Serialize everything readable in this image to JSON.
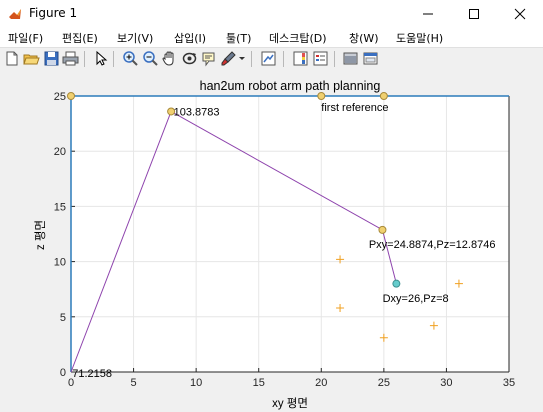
{
  "window": {
    "title": "Figure 1",
    "icon": "matlab-icon",
    "controls": [
      "minimize-icon",
      "maximize-icon",
      "close-icon"
    ]
  },
  "menu": [
    {
      "label": "파일(F)"
    },
    {
      "label": "편집(E)"
    },
    {
      "label": "보기(V)"
    },
    {
      "label": "삽입(I)"
    },
    {
      "label": "툴(T)"
    },
    {
      "label": "데스크탑(D)"
    },
    {
      "label": "창(W)"
    },
    {
      "label": "도움말(H)"
    }
  ],
  "toolbar": [
    "new-figure-icon",
    "open-file-icon",
    "save-icon",
    "print-icon",
    "select-arrow-icon",
    "zoom-in-icon",
    "zoom-out-icon",
    "pan-hand-icon",
    "rotate-3d-icon",
    "data-cursor-icon",
    "brush-icon",
    "link-plot-icon",
    "colorbar-icon",
    "legend-icon",
    "hide-plot-tools-icon",
    "show-plot-tools-icon"
  ],
  "colors": {
    "path": "#8e44ad",
    "marker_yellow": "#f0d070",
    "marker_cyan": "#66cccc",
    "targets": "#f0a020",
    "axes": "#262626",
    "left_axis": "#2b7bba",
    "grid": "#e6e6e6"
  },
  "chart_data": {
    "type": "line",
    "title": "han2um robot arm path planning",
    "xlabel": "xy 평면",
    "ylabel": "z 평면",
    "xlim": [
      0,
      35
    ],
    "ylim": [
      0,
      25
    ],
    "xticks": [
      "0",
      "5",
      "10",
      "15",
      "20",
      "25",
      "30",
      "35"
    ],
    "yticks": [
      "0",
      "5",
      "10",
      "15",
      "20",
      "25"
    ],
    "grid": true,
    "arm_path": {
      "x": [
        0,
        8,
        24.8874,
        26
      ],
      "y": [
        0,
        23.6,
        12.8746,
        8
      ]
    },
    "joint_markers": [
      {
        "x": 0,
        "y": 25,
        "color": "yellow"
      },
      {
        "x": 20,
        "y": 25,
        "color": "yellow"
      },
      {
        "x": 25,
        "y": 25,
        "color": "yellow"
      },
      {
        "x": 8,
        "y": 23.6,
        "color": "yellow"
      },
      {
        "x": 24.8874,
        "y": 12.8746,
        "color": "yellow"
      },
      {
        "x": 26,
        "y": 8,
        "color": "cyan"
      }
    ],
    "targets": [
      {
        "x": 21.5,
        "y": 10.2
      },
      {
        "x": 21.5,
        "y": 5.8
      },
      {
        "x": 25,
        "y": 3.1
      },
      {
        "x": 29,
        "y": 4.2
      },
      {
        "x": 31,
        "y": 8.0
      }
    ],
    "annotations": [
      {
        "text": "103.8783",
        "x": 8.2,
        "y": 23.6
      },
      {
        "text": "first reference",
        "x": 20,
        "y": 24.0
      },
      {
        "text": "Pxy=24.8874,Pz=12.8746",
        "x": 23.8,
        "y": 11.6
      },
      {
        "text": "Dxy=26,Pz=8",
        "x": 24.9,
        "y": 6.7
      },
      {
        "text": "71.2158",
        "x": 0.1,
        "y": -0.1
      }
    ]
  }
}
